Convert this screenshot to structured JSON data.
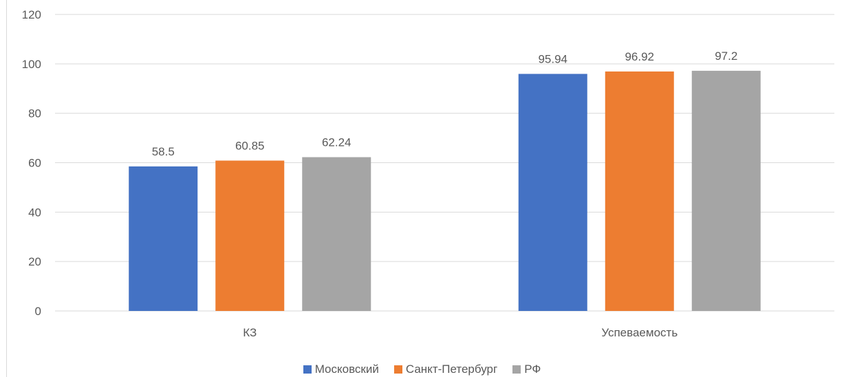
{
  "chart_data": {
    "type": "bar",
    "categories": [
      "КЗ",
      "Успеваемость"
    ],
    "series": [
      {
        "name": "Московский",
        "values": [
          58.5,
          95.94
        ],
        "color": "#4472C4"
      },
      {
        "name": "Санкт-Петербург",
        "values": [
          60.85,
          96.92
        ],
        "color": "#ED7D31"
      },
      {
        "name": "РФ",
        "values": [
          62.24,
          97.2
        ],
        "color": "#A5A5A5"
      }
    ],
    "ylim": [
      0,
      120
    ],
    "yticks": [
      0,
      20,
      40,
      60,
      80,
      100,
      120
    ],
    "grid": true,
    "legend_position": "bottom",
    "data_labels": true,
    "gridline_color": "#d9d9d9",
    "text_color": "#595959"
  }
}
